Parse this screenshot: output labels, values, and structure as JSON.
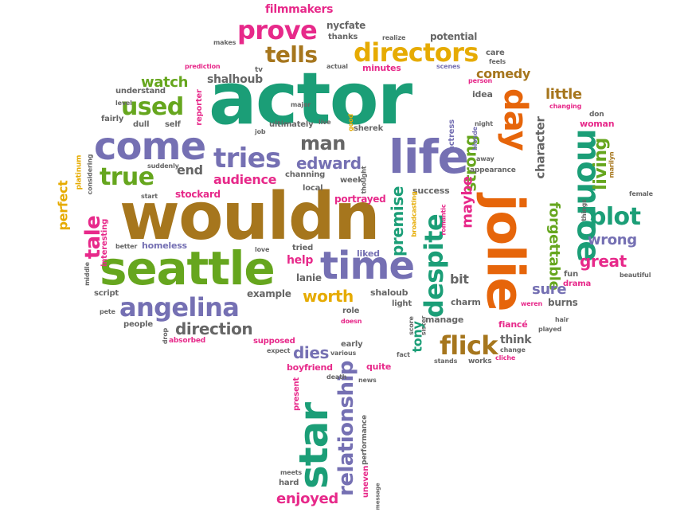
{
  "colors": {
    "teal": "#1b9e77",
    "orange": "#e6650a",
    "purple": "#7570b3",
    "pink": "#e7298a",
    "green": "#66a61e",
    "gold": "#e6ab02",
    "brown": "#a6761d",
    "gray": "#666666"
  },
  "words": [
    {
      "text": "wouldn",
      "color": "brown"
    },
    {
      "text": "actor",
      "color": "teal"
    },
    {
      "text": "jolie",
      "color": "orange"
    },
    {
      "text": "seattle",
      "color": "green"
    },
    {
      "text": "life",
      "color": "purple"
    },
    {
      "text": "time",
      "color": "purple"
    },
    {
      "text": "come",
      "color": "purple"
    },
    {
      "text": "star",
      "color": "teal"
    },
    {
      "text": "monroe",
      "color": "teal"
    },
    {
      "text": "day",
      "color": "orange"
    },
    {
      "text": "angelina",
      "color": "purple"
    },
    {
      "text": "despite",
      "color": "teal"
    },
    {
      "text": "flick",
      "color": "brown"
    },
    {
      "text": "prove",
      "color": "pink"
    },
    {
      "text": "directors",
      "color": "gold"
    },
    {
      "text": "tells",
      "color": "brown"
    },
    {
      "text": "used",
      "color": "green"
    },
    {
      "text": "tries",
      "color": "purple"
    },
    {
      "text": "true",
      "color": "green"
    },
    {
      "text": "relationship",
      "color": "purple"
    },
    {
      "text": "plot",
      "color": "teal"
    },
    {
      "text": "living",
      "color": "green"
    },
    {
      "text": "tale",
      "color": "pink"
    },
    {
      "text": "premise",
      "color": "teal"
    },
    {
      "text": "man",
      "color": "gray"
    },
    {
      "text": "edward",
      "color": "purple"
    },
    {
      "text": "direction",
      "color": "gray"
    },
    {
      "text": "forgettable",
      "color": "green"
    },
    {
      "text": "strong",
      "color": "green"
    },
    {
      "text": "maybe",
      "color": "pink"
    },
    {
      "text": "watch",
      "color": "green"
    },
    {
      "text": "comedy",
      "color": "brown"
    },
    {
      "text": "little",
      "color": "brown"
    },
    {
      "text": "character",
      "color": "gray"
    },
    {
      "text": "wrong",
      "color": "purple"
    },
    {
      "text": "great",
      "color": "pink"
    },
    {
      "text": "sure",
      "color": "purple"
    },
    {
      "text": "worth",
      "color": "gold"
    },
    {
      "text": "audience",
      "color": "pink"
    },
    {
      "text": "end",
      "color": "gray"
    },
    {
      "text": "perfect",
      "color": "gold"
    },
    {
      "text": "dies",
      "color": "purple"
    },
    {
      "text": "enjoyed",
      "color": "pink"
    },
    {
      "text": "shalhoub",
      "color": "gray"
    },
    {
      "text": "filmmakers",
      "color": "pink"
    },
    {
      "text": "nycfate",
      "color": "gray"
    },
    {
      "text": "thanks",
      "color": "gray"
    },
    {
      "text": "potential",
      "color": "gray"
    },
    {
      "text": "realize",
      "color": "gray"
    },
    {
      "text": "makes",
      "color": "gray"
    },
    {
      "text": "prediction",
      "color": "pink"
    },
    {
      "text": "tv",
      "color": "gray"
    },
    {
      "text": "actual",
      "color": "gray"
    },
    {
      "text": "minutes",
      "color": "pink"
    },
    {
      "text": "scenes",
      "color": "purple"
    },
    {
      "text": "care",
      "color": "gray"
    },
    {
      "text": "feels",
      "color": "gray"
    },
    {
      "text": "person",
      "color": "pink"
    },
    {
      "text": "idea",
      "color": "gray"
    },
    {
      "text": "understand",
      "color": "gray"
    },
    {
      "text": "level",
      "color": "gray"
    },
    {
      "text": "fairly",
      "color": "gray"
    },
    {
      "text": "dull",
      "color": "gray"
    },
    {
      "text": "self",
      "color": "gray"
    },
    {
      "text": "reporter",
      "color": "pink"
    },
    {
      "text": "major",
      "color": "gray"
    },
    {
      "text": "ultimately",
      "color": "gray"
    },
    {
      "text": "job",
      "color": "gray"
    },
    {
      "text": "live",
      "color": "gray"
    },
    {
      "text": "good",
      "color": "gold"
    },
    {
      "text": "sherek",
      "color": "gray"
    },
    {
      "text": "actress",
      "color": "purple"
    },
    {
      "text": "blonde",
      "color": "purple"
    },
    {
      "text": "night",
      "color": "gray"
    },
    {
      "text": "away",
      "color": "gray"
    },
    {
      "text": "appearance",
      "color": "gray"
    },
    {
      "text": "changing",
      "color": "pink"
    },
    {
      "text": "don",
      "color": "gray"
    },
    {
      "text": "woman",
      "color": "pink"
    },
    {
      "text": "marilyn",
      "color": "brown"
    },
    {
      "text": "female",
      "color": "gray"
    },
    {
      "text": "things",
      "color": "gray"
    },
    {
      "text": "beautiful",
      "color": "gray"
    },
    {
      "text": "platinum",
      "color": "gold"
    },
    {
      "text": "considering",
      "color": "gray"
    },
    {
      "text": "suddenly",
      "color": "gray"
    },
    {
      "text": "start",
      "color": "gray"
    },
    {
      "text": "interesting",
      "color": "pink"
    },
    {
      "text": "middle",
      "color": "gray"
    },
    {
      "text": "better",
      "color": "gray"
    },
    {
      "text": "homeless",
      "color": "purple"
    },
    {
      "text": "stockard",
      "color": "pink"
    },
    {
      "text": "channing",
      "color": "gray"
    },
    {
      "text": "local",
      "color": "gray"
    },
    {
      "text": "week",
      "color": "gray"
    },
    {
      "text": "thought",
      "color": "gray"
    },
    {
      "text": "portrayed",
      "color": "pink"
    },
    {
      "text": "success",
      "color": "gray"
    },
    {
      "text": "broadcasting",
      "color": "gold"
    },
    {
      "text": "romantic",
      "color": "pink"
    },
    {
      "text": "tried",
      "color": "gray"
    },
    {
      "text": "liked",
      "color": "purple"
    },
    {
      "text": "love",
      "color": "gray"
    },
    {
      "text": "help",
      "color": "pink"
    },
    {
      "text": "lanie",
      "color": "gray"
    },
    {
      "text": "bit",
      "color": "gray"
    },
    {
      "text": "fun",
      "color": "gray"
    },
    {
      "text": "drama",
      "color": "pink"
    },
    {
      "text": "burns",
      "color": "gray"
    },
    {
      "text": "script",
      "color": "gray"
    },
    {
      "text": "example",
      "color": "gray"
    },
    {
      "text": "pete",
      "color": "gray"
    },
    {
      "text": "people",
      "color": "gray"
    },
    {
      "text": "shaloub",
      "color": "gray"
    },
    {
      "text": "light",
      "color": "gray"
    },
    {
      "text": "role",
      "color": "gray"
    },
    {
      "text": "doesn",
      "color": "pink"
    },
    {
      "text": "score",
      "color": "gray"
    },
    {
      "text": "sister",
      "color": "gray"
    },
    {
      "text": "charm",
      "color": "gray"
    },
    {
      "text": "manage",
      "color": "gray"
    },
    {
      "text": "weren",
      "color": "pink"
    },
    {
      "text": "played",
      "color": "gray"
    },
    {
      "text": "hair",
      "color": "gray"
    },
    {
      "text": "fiancé",
      "color": "pink"
    },
    {
      "text": "think",
      "color": "gray"
    },
    {
      "text": "change",
      "color": "gray"
    },
    {
      "text": "cliche",
      "color": "pink"
    },
    {
      "text": "works",
      "color": "gray"
    },
    {
      "text": "stands",
      "color": "gray"
    },
    {
      "text": "fact",
      "color": "gray"
    },
    {
      "text": "tony",
      "color": "teal"
    },
    {
      "text": "drop",
      "color": "gray"
    },
    {
      "text": "absorbed",
      "color": "pink"
    },
    {
      "text": "supposed",
      "color": "pink"
    },
    {
      "text": "expect",
      "color": "gray"
    },
    {
      "text": "early",
      "color": "gray"
    },
    {
      "text": "various",
      "color": "gray"
    },
    {
      "text": "quite",
      "color": "pink"
    },
    {
      "text": "boyfriend",
      "color": "pink"
    },
    {
      "text": "present",
      "color": "pink"
    },
    {
      "text": "death",
      "color": "gray"
    },
    {
      "text": "news",
      "color": "gray"
    },
    {
      "text": "performance",
      "color": "gray"
    },
    {
      "text": "uneven",
      "color": "pink"
    },
    {
      "text": "message",
      "color": "gray"
    },
    {
      "text": "meets",
      "color": "gray"
    },
    {
      "text": "hard",
      "color": "gray"
    }
  ]
}
